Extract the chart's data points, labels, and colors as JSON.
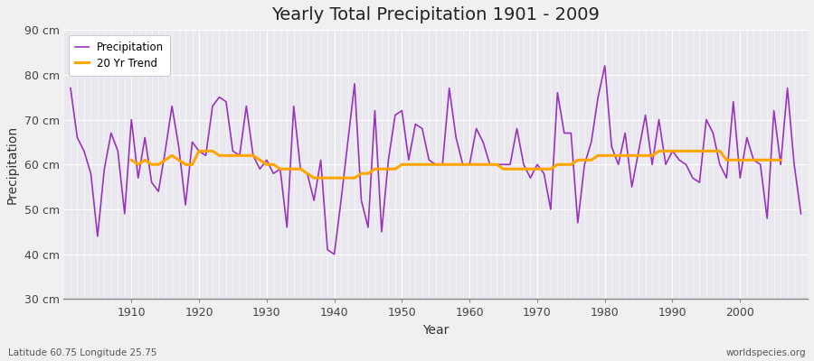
{
  "title": "Yearly Total Precipitation 1901 - 2009",
  "xlabel": "Year",
  "ylabel": "Precipitation",
  "lat_lon_label": "Latitude 60.75 Longitude 25.75",
  "watermark": "worldspecies.org",
  "precipitation_color": "#9933BB",
  "trend_color": "#FFA500",
  "plot_bg_color": "#E8E8EE",
  "fig_bg_color": "#F0F0F0",
  "ylim": [
    30,
    90
  ],
  "xlim": [
    1900,
    2010
  ],
  "ytick_labels": [
    "30 cm",
    "40 cm",
    "50 cm",
    "60 cm",
    "70 cm",
    "80 cm",
    "90 cm"
  ],
  "ytick_values": [
    30,
    40,
    50,
    60,
    70,
    80,
    90
  ],
  "years": [
    1901,
    1902,
    1903,
    1904,
    1905,
    1906,
    1907,
    1908,
    1909,
    1910,
    1911,
    1912,
    1913,
    1914,
    1915,
    1916,
    1917,
    1918,
    1919,
    1920,
    1921,
    1922,
    1923,
    1924,
    1925,
    1926,
    1927,
    1928,
    1929,
    1930,
    1931,
    1932,
    1933,
    1934,
    1935,
    1936,
    1937,
    1938,
    1939,
    1940,
    1941,
    1942,
    1943,
    1944,
    1945,
    1946,
    1947,
    1948,
    1949,
    1950,
    1951,
    1952,
    1953,
    1954,
    1955,
    1956,
    1957,
    1958,
    1959,
    1960,
    1961,
    1962,
    1963,
    1964,
    1965,
    1966,
    1967,
    1968,
    1969,
    1970,
    1971,
    1972,
    1973,
    1974,
    1975,
    1976,
    1977,
    1978,
    1979,
    1980,
    1981,
    1982,
    1983,
    1984,
    1985,
    1986,
    1987,
    1988,
    1989,
    1990,
    1991,
    1992,
    1993,
    1994,
    1995,
    1996,
    1997,
    1998,
    1999,
    2000,
    2001,
    2002,
    2003,
    2004,
    2005,
    2006,
    2007,
    2008,
    2009
  ],
  "precipitation": [
    77,
    66,
    63,
    58,
    44,
    59,
    67,
    63,
    49,
    70,
    57,
    66,
    56,
    54,
    63,
    73,
    64,
    51,
    65,
    63,
    62,
    73,
    75,
    74,
    63,
    62,
    73,
    62,
    59,
    61,
    58,
    59,
    46,
    73,
    59,
    58,
    52,
    61,
    41,
    40,
    52,
    65,
    78,
    52,
    46,
    72,
    45,
    61,
    71,
    72,
    61,
    69,
    68,
    61,
    60,
    60,
    77,
    66,
    60,
    60,
    68,
    65,
    60,
    60,
    60,
    60,
    68,
    60,
    57,
    60,
    58,
    50,
    76,
    67,
    67,
    47,
    60,
    65,
    75,
    82,
    64,
    60,
    67,
    55,
    63,
    71,
    60,
    70,
    60,
    63,
    61,
    60,
    57,
    56,
    70,
    67,
    60,
    57,
    74,
    57,
    66,
    61,
    60,
    48,
    72,
    60,
    77,
    60,
    49
  ],
  "trend": [
    null,
    null,
    null,
    null,
    null,
    null,
    null,
    null,
    null,
    61,
    60,
    61,
    60,
    60,
    61,
    62,
    61,
    60,
    60,
    63,
    63,
    63,
    62,
    62,
    62,
    62,
    62,
    62,
    61,
    60,
    60,
    59,
    59,
    59,
    59,
    58,
    57,
    57,
    57,
    57,
    57,
    57,
    57,
    58,
    58,
    59,
    59,
    59,
    59,
    60,
    60,
    60,
    60,
    60,
    60,
    60,
    60,
    60,
    60,
    60,
    60,
    60,
    60,
    60,
    59,
    59,
    59,
    59,
    59,
    59,
    59,
    59,
    60,
    60,
    60,
    61,
    61,
    61,
    62,
    62,
    62,
    62,
    62,
    62,
    62,
    62,
    62,
    63,
    63,
    63,
    63,
    63,
    63,
    63,
    63,
    63,
    63,
    61,
    61,
    61,
    61,
    61,
    61,
    61,
    61,
    61,
    null,
    null,
    null
  ]
}
